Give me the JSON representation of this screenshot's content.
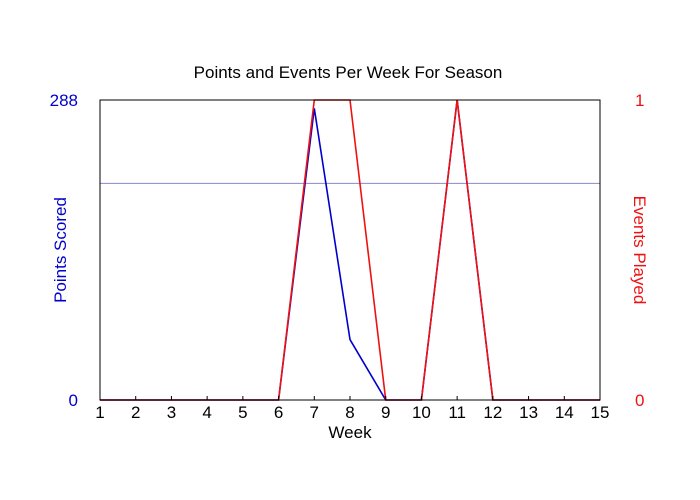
{
  "chart_data": {
    "type": "line",
    "title": "Points and Events Per Week For Season",
    "xlabel": "Week",
    "x": [
      1,
      2,
      3,
      4,
      5,
      6,
      7,
      8,
      9,
      10,
      11,
      12,
      13,
      14,
      15
    ],
    "xlim": [
      1,
      15
    ],
    "y_left": {
      "label": "Points Scored",
      "ylim": [
        0,
        288
      ],
      "tick_labels": [
        "0",
        "288"
      ],
      "color": "#0000cc"
    },
    "y_right": {
      "label": "Events Played",
      "ylim": [
        0,
        1
      ],
      "tick_labels": [
        "0",
        "1"
      ],
      "color": "#ee1111"
    },
    "series": [
      {
        "axis": "left",
        "color": "#0000cc",
        "values": [
          0,
          0,
          0,
          0,
          0,
          0,
          280,
          58,
          0,
          0,
          288,
          0,
          0,
          0,
          0
        ]
      },
      {
        "axis": "right",
        "color": "#ee1111",
        "values": [
          0,
          0,
          0,
          0,
          0,
          0,
          1,
          1,
          0,
          0,
          1,
          0,
          0,
          0,
          0
        ]
      }
    ],
    "reference_line": {
      "axis": "left",
      "value": 208,
      "color": "#8888cc"
    },
    "grid": false,
    "legend": "none"
  }
}
